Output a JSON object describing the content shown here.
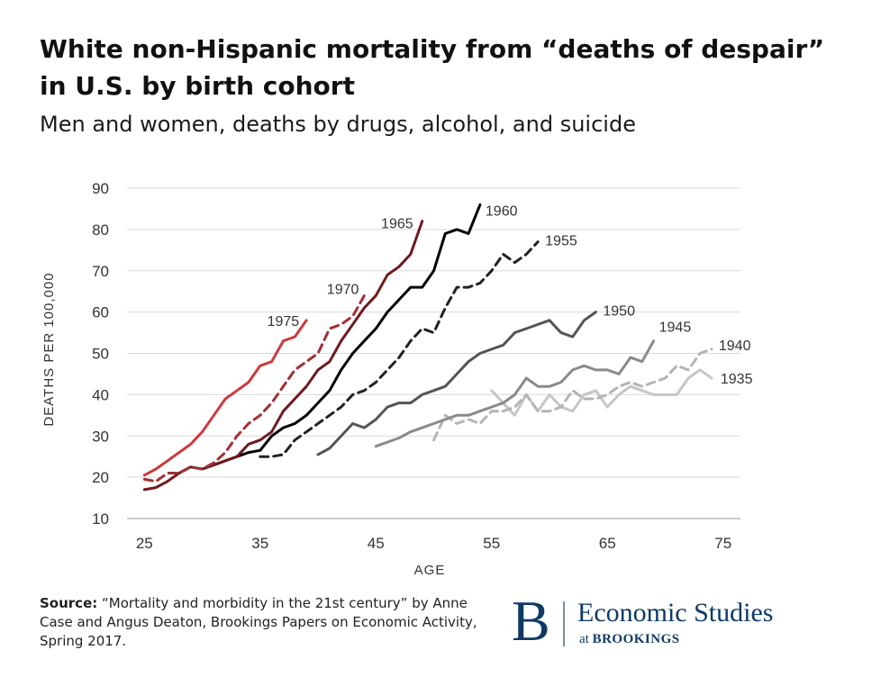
{
  "header": {
    "title": "White non-Hispanic mortality from “deaths of despair” in U.S. by birth cohort",
    "subtitle": "Men and women, deaths by drugs, alcohol, and suicide"
  },
  "footer": {
    "source_label": "Source:",
    "source_text": "“Mortality and morbidity in the 21st century” by Anne Case and Angus Deaton, Brookings Papers on Economic Activity, Spring 2017.",
    "logo_letter": "B",
    "logo_main": "Economic Studies",
    "logo_sub_prefix": "at",
    "logo_sub_name": "BROOKINGS"
  },
  "chart_data": {
    "type": "line",
    "title": "White non-Hispanic mortality from “deaths of despair” in U.S. by birth cohort",
    "subtitle": "Men and women, deaths by drugs, alcohol, and suicide",
    "xlabel": "AGE",
    "ylabel": "DEATHS PER 100,000",
    "xlim": [
      23.5,
      76.5
    ],
    "ylim": [
      10,
      90
    ],
    "xticks": [
      25,
      35,
      45,
      55,
      65,
      75
    ],
    "yticks": [
      10,
      20,
      30,
      40,
      50,
      60,
      70,
      80,
      90
    ],
    "grid": "horizontal",
    "legend": "inline labels at line ends",
    "series": [
      {
        "name": "1935",
        "color": "#c6c6c6",
        "dash": false,
        "x": [
          55,
          56,
          57,
          58,
          59,
          60,
          61,
          62,
          63,
          64,
          65,
          66,
          67,
          68,
          69,
          70,
          71,
          72,
          73,
          74
        ],
        "y": [
          41,
          38,
          35,
          40,
          36,
          40,
          37,
          36,
          40,
          41,
          37,
          40,
          42,
          41,
          40,
          40,
          40,
          44,
          46,
          44
        ]
      },
      {
        "name": "1940",
        "color": "#b4b4b4",
        "dash": true,
        "x": [
          50,
          51,
          52,
          53,
          54,
          55,
          56,
          57,
          58,
          59,
          60,
          61,
          62,
          63,
          64,
          65,
          66,
          67,
          68,
          69,
          70,
          71,
          72,
          73,
          74
        ],
        "y": [
          29,
          35,
          33,
          34,
          33,
          36,
          36,
          37,
          40,
          36,
          36,
          37,
          41,
          39,
          39,
          40,
          42,
          43,
          42,
          43,
          44,
          47,
          46,
          50,
          51
        ]
      },
      {
        "name": "1945",
        "color": "#8a8a8a",
        "dash": false,
        "x": [
          45,
          46,
          47,
          48,
          49,
          50,
          51,
          52,
          53,
          54,
          55,
          56,
          57,
          58,
          59,
          60,
          61,
          62,
          63,
          64,
          65,
          66,
          67,
          68,
          69
        ],
        "y": [
          27.5,
          28.5,
          29.5,
          31,
          32,
          33,
          34,
          35,
          35,
          36,
          37,
          38,
          40,
          44,
          42,
          42,
          43,
          46,
          47,
          46,
          46,
          45,
          49,
          48,
          53
        ]
      },
      {
        "name": "1950",
        "color": "#555555",
        "dash": false,
        "x": [
          40,
          41,
          42,
          43,
          44,
          45,
          46,
          47,
          48,
          49,
          50,
          51,
          52,
          53,
          54,
          55,
          56,
          57,
          58,
          59,
          60,
          61,
          62,
          63,
          64
        ],
        "y": [
          25.5,
          27,
          30,
          33,
          32,
          34,
          37,
          38,
          38,
          40,
          41,
          42,
          45,
          48,
          50,
          51,
          52,
          55,
          56,
          57,
          58,
          55,
          54,
          58,
          60
        ]
      },
      {
        "name": "1955",
        "color": "#222222",
        "dash": true,
        "x": [
          35,
          36,
          37,
          38,
          39,
          40,
          41,
          42,
          43,
          44,
          45,
          46,
          47,
          48,
          49,
          50,
          51,
          52,
          53,
          54,
          55,
          56,
          57,
          58,
          59
        ],
        "y": [
          25,
          25,
          25.5,
          29,
          31,
          33,
          35,
          37,
          40,
          41,
          43,
          46,
          49,
          53,
          56,
          55,
          61,
          66,
          66,
          67,
          70,
          74,
          72,
          74,
          77
        ]
      },
      {
        "name": "1960",
        "color": "#000000",
        "dash": false,
        "x": [
          30,
          31,
          32,
          33,
          34,
          35,
          36,
          37,
          38,
          39,
          40,
          41,
          42,
          43,
          44,
          45,
          46,
          47,
          48,
          49,
          50,
          51,
          52,
          53,
          54
        ],
        "y": [
          22,
          23,
          24,
          25,
          26,
          26.5,
          30,
          32,
          33,
          35,
          38,
          41,
          46,
          50,
          53,
          56,
          60,
          63,
          66,
          66,
          70,
          79,
          80,
          79,
          86
        ]
      },
      {
        "name": "1965",
        "color": "#6e1a1e",
        "dash": false,
        "x": [
          25,
          26,
          27,
          28,
          29,
          30,
          31,
          32,
          33,
          34,
          35,
          36,
          37,
          38,
          39,
          40,
          41,
          42,
          43,
          44,
          45,
          46,
          47,
          48,
          49
        ],
        "y": [
          17,
          17.5,
          19,
          21,
          22.5,
          22,
          23,
          24,
          25,
          28,
          29,
          31,
          36,
          39,
          42,
          46,
          48,
          53,
          57,
          61,
          64,
          69,
          71,
          74,
          82
        ]
      },
      {
        "name": "1970",
        "color": "#a03035",
        "dash": true,
        "x": [
          25,
          26,
          27,
          28,
          29,
          30,
          31,
          32,
          33,
          34,
          35,
          36,
          37,
          38,
          39,
          40,
          41,
          42,
          43,
          44
        ],
        "y": [
          19.5,
          19,
          21,
          21,
          22.5,
          22,
          23.5,
          26,
          30,
          33,
          35,
          38,
          42,
          46,
          48,
          50,
          56,
          57,
          59,
          64
        ]
      },
      {
        "name": "1975",
        "color": "#cc3a3f",
        "dash": false,
        "x": [
          25,
          26,
          27,
          28,
          29,
          30,
          31,
          32,
          33,
          34,
          35,
          36,
          37,
          38,
          39
        ],
        "y": [
          20.5,
          22,
          24,
          26,
          28,
          31,
          35,
          39,
          41,
          43,
          47,
          48,
          53,
          54,
          58
        ]
      }
    ]
  }
}
